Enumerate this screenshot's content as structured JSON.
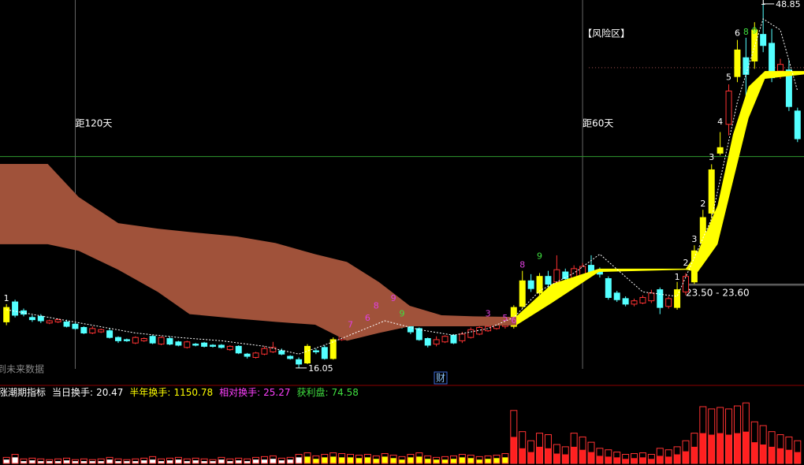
{
  "chart_data": [
    {
      "type": "candlestick",
      "xlim": [
        -0.75,
        92.75
      ],
      "ylim": [
        14.55,
        49.2
      ],
      "ohlc": [
        [
          20.2,
          21.8,
          19.9,
          21.5
        ],
        [
          22.0,
          22.2,
          20.6,
          20.8
        ],
        [
          21.2,
          21.4,
          20.7,
          20.9
        ],
        [
          20.6,
          20.8,
          20.2,
          20.4
        ],
        [
          20.7,
          20.9,
          20.1,
          20.3
        ],
        [
          20.1,
          20.4,
          20.0,
          20.3
        ],
        [
          20.2,
          20.5,
          20.1,
          20.4
        ],
        [
          20.2,
          20.4,
          19.7,
          19.8
        ],
        [
          20.0,
          20.1,
          19.5,
          19.6
        ],
        [
          19.7,
          19.8,
          19.1,
          19.2
        ],
        [
          19.2,
          19.8,
          19.1,
          19.6
        ],
        [
          19.3,
          19.6,
          19.2,
          19.5
        ],
        [
          19.4,
          19.6,
          18.7,
          18.8
        ],
        [
          18.8,
          18.9,
          18.3,
          18.5
        ],
        [
          18.6,
          18.7,
          18.4,
          18.5
        ],
        [
          18.3,
          18.9,
          18.2,
          18.8
        ],
        [
          18.5,
          18.8,
          18.4,
          18.7
        ],
        [
          18.9,
          19.0,
          18.2,
          18.3
        ],
        [
          18.2,
          18.9,
          18.1,
          18.8
        ],
        [
          18.7,
          18.9,
          18.1,
          18.2
        ],
        [
          18.4,
          18.5,
          18.0,
          18.1
        ],
        [
          17.9,
          18.5,
          17.8,
          18.4
        ],
        [
          18.2,
          18.3,
          18.0,
          18.1
        ],
        [
          18.3,
          18.4,
          17.9,
          18.0
        ],
        [
          18.1,
          18.2,
          17.9,
          18.0
        ],
        [
          18.1,
          18.2,
          17.8,
          17.9
        ],
        [
          17.7,
          18.1,
          17.6,
          18.0
        ],
        [
          18.0,
          18.1,
          17.3,
          17.4
        ],
        [
          17.3,
          17.4,
          16.9,
          17.1
        ],
        [
          17.0,
          17.5,
          16.9,
          17.4
        ],
        [
          17.3,
          18.0,
          17.2,
          17.8
        ],
        [
          17.5,
          18.4,
          17.4,
          17.9
        ],
        [
          17.6,
          17.8,
          17.2,
          17.3
        ],
        [
          17.1,
          17.2,
          16.8,
          16.9
        ],
        [
          16.8,
          17.0,
          16.05,
          16.4
        ],
        [
          16.5,
          18.2,
          16.4,
          18.0
        ],
        [
          17.6,
          17.8,
          17.3,
          17.5
        ],
        [
          17.9,
          18.1,
          16.8,
          16.9
        ],
        [
          16.9,
          18.8,
          16.8,
          18.6
        ],
        [
          18.6,
          19.2,
          18.5,
          19.0
        ],
        [
          18.9,
          19.4,
          18.8,
          19.3
        ],
        [
          19.2,
          19.8,
          19.1,
          19.6
        ],
        [
          19.5,
          20.2,
          19.4,
          20.0
        ],
        [
          20.3,
          20.6,
          19.7,
          19.8
        ],
        [
          19.7,
          20.6,
          19.6,
          20.4
        ],
        [
          20.1,
          20.8,
          20.0,
          20.5
        ],
        [
          20.4,
          20.5,
          19.6,
          19.8
        ],
        [
          19.8,
          19.9,
          19.1,
          19.3
        ],
        [
          19.6,
          19.7,
          18.5,
          18.6
        ],
        [
          18.7,
          18.8,
          17.9,
          18.1
        ],
        [
          18.2,
          18.9,
          18.0,
          18.6
        ],
        [
          18.4,
          19.0,
          18.3,
          18.9
        ],
        [
          19.0,
          19.1,
          18.2,
          18.3
        ],
        [
          18.5,
          19.3,
          18.3,
          19.1
        ],
        [
          18.8,
          19.7,
          18.7,
          19.5
        ],
        [
          19.1,
          19.8,
          19.0,
          19.7
        ],
        [
          19.4,
          19.9,
          19.3,
          19.8
        ],
        [
          19.6,
          20.0,
          19.5,
          19.9
        ],
        [
          19.8,
          20.1,
          19.6,
          20.0
        ],
        [
          19.8,
          21.7,
          19.6,
          21.5
        ],
        [
          21.6,
          24.8,
          21.4,
          23.9
        ],
        [
          23.9,
          24.5,
          22.9,
          23.2
        ],
        [
          22.8,
          24.6,
          22.6,
          24.3
        ],
        [
          24.3,
          24.8,
          23.3,
          23.6
        ],
        [
          23.8,
          26.2,
          23.6,
          24.9
        ],
        [
          24.7,
          25.0,
          23.9,
          24.1
        ],
        [
          24.0,
          25.3,
          23.8,
          25.0
        ],
        [
          24.4,
          25.5,
          24.2,
          25.2
        ],
        [
          25.3,
          26.2,
          24.3,
          24.6
        ],
        [
          24.9,
          25.1,
          24.2,
          24.5
        ],
        [
          24.1,
          24.3,
          22.2,
          22.4
        ],
        [
          22.8,
          23.0,
          22.0,
          22.2
        ],
        [
          22.3,
          22.5,
          21.6,
          21.8
        ],
        [
          21.8,
          22.3,
          21.6,
          22.1
        ],
        [
          21.9,
          22.6,
          21.8,
          22.4
        ],
        [
          22.1,
          23.1,
          21.9,
          22.8
        ],
        [
          23.1,
          23.3,
          20.9,
          21.5
        ],
        [
          21.6,
          22.5,
          21.4,
          22.3
        ],
        [
          21.5,
          23.8,
          21.3,
          23.1
        ],
        [
          22.9,
          24.6,
          22.6,
          24.3
        ],
        [
          23.8,
          27.1,
          23.6,
          26.6
        ],
        [
          27.3,
          30.3,
          27.0,
          29.6
        ],
        [
          30.0,
          34.4,
          29.5,
          33.9
        ],
        [
          35.4,
          37.3,
          35.2,
          35.9
        ],
        [
          38.0,
          41.6,
          37.0,
          41.0
        ],
        [
          42.3,
          45.6,
          41.8,
          44.7
        ],
        [
          44.0,
          45.8,
          40.5,
          42.5
        ],
        [
          43.7,
          47.2,
          43.0,
          46.5
        ],
        [
          46.1,
          48.85,
          44.5,
          45.1
        ],
        [
          45.3,
          46.6,
          41.8,
          42.2
        ],
        [
          42.8,
          43.9,
          42.1,
          43.4
        ],
        [
          42.9,
          43.8,
          39.2,
          39.6
        ],
        [
          39.2,
          39.5,
          36.4,
          36.7
        ]
      ],
      "colors": [
        "#ffff00",
        "#54ffff",
        "#54ffff",
        "#54ffff",
        "#54ffff",
        "#ff3232",
        "#ff3232",
        "#54ffff",
        "#54ffff",
        "#54ffff",
        "#ff3232",
        "#ff3232",
        "#54ffff",
        "#54ffff",
        "#54ffff",
        "#ff3232",
        "#ff3232",
        "#54ffff",
        "#ff3232",
        "#54ffff",
        "#54ffff",
        "#ff3232",
        "#54ffff",
        "#54ffff",
        "#54ffff",
        "#54ffff",
        "#ff3232",
        "#54ffff",
        "#54ffff",
        "#ff3232",
        "#ff3232",
        "#ff3232",
        "#54ffff",
        "#54ffff",
        "#54ffff",
        "#ffff00",
        "#54ffff",
        "#54ffff",
        "#ffff00",
        "#ff3232",
        "#ff3232",
        "#ff3232",
        "#ff3232",
        "#54ffff",
        "#ff3232",
        "#ff3232",
        "#54ffff",
        "#54ffff",
        "#54ffff",
        "#54ffff",
        "#ff3232",
        "#ff3232",
        "#54ffff",
        "#ff3232",
        "#ff3232",
        "#ff3232",
        "#ff3232",
        "#ff3232",
        "#ff3232",
        "#ffff00",
        "#ffff00",
        "#54ffff",
        "#ffff00",
        "#54ffff",
        "#ff3232",
        "#54ffff",
        "#ff3232",
        "#ff3232",
        "#54ffff",
        "#54ffff",
        "#54ffff",
        "#54ffff",
        "#54ffff",
        "#ff3232",
        "#ff3232",
        "#ff3232",
        "#54ffff",
        "#ff3232",
        "#ffff00",
        "#ff3232",
        "#ffff00",
        "#ffff00",
        "#ffff00",
        "#ffff00",
        "#ff3232",
        "#ffff00",
        "#54ffff",
        "#ffff00",
        "#54ffff",
        "#54ffff",
        "#ff3232",
        "#54ffff",
        "#54ffff"
      ],
      "band": {
        "color": "#a0523a",
        "x": [
          -0.75,
          4.8,
          8.4,
          13.0,
          17.6,
          21.3,
          26.8,
          31.3,
          35.9,
          39.6,
          43.3,
          46.9,
          50.6,
          54.3,
          59.3
        ],
        "upper": [
          34.43,
          34.43,
          31.45,
          29.1,
          28.6,
          28.3,
          27.9,
          27.3,
          26.3,
          25.6,
          23.8,
          21.65,
          20.8,
          20.7,
          20.65
        ],
        "lower": [
          27.2,
          27.2,
          26.6,
          24.9,
          22.9,
          20.9,
          20.5,
          20.2,
          19.95,
          18.5,
          19.2,
          19.8,
          19.8,
          19.8,
          19.9
        ]
      },
      "ribbon": {
        "color": "#ffff00",
        "x": [
          59.3,
          63.4,
          68.9,
          79.0,
          80.4,
          82.7,
          84.5,
          86.3,
          88.2,
          92.75
        ],
        "upper": [
          20.7,
          23.6,
          25.0,
          25.0,
          26.5,
          30.7,
          37.1,
          41.4,
          42.8,
          42.8
        ],
        "lower": [
          19.9,
          21.9,
          24.7,
          24.9,
          24.7,
          27.2,
          32.9,
          38.55,
          42.1,
          42.5
        ]
      },
      "ma": {
        "color": "#ffffff",
        "x": [
          0,
          5,
          10,
          15,
          20,
          25,
          30,
          34,
          38,
          44,
          48,
          52,
          56,
          59,
          62,
          66,
          69,
          74,
          78,
          82,
          85,
          88,
          90,
          92
        ],
        "values": [
          21.3,
          20.6,
          19.9,
          19.2,
          18.8,
          18.5,
          18.0,
          17.3,
          18.4,
          20.3,
          19.5,
          19.0,
          19.6,
          20.6,
          23.0,
          24.6,
          26.3,
          22.9,
          22.5,
          29.5,
          40.0,
          47.5,
          46.5,
          41.0
        ]
      },
      "hlines": [
        {
          "value": 35.1,
          "color": "#2e9a2e"
        }
      ],
      "risk_zone": {
        "label": "【风险区】",
        "value": 43.1
      },
      "support": {
        "label": "23.50 - 23.60",
        "values": [
          23.5,
          23.6
        ]
      },
      "markers": [
        {
          "label": "距120天",
          "index": 8
        },
        {
          "label": "距60天",
          "index": 67
        }
      ],
      "counts": [
        {
          "label": "1",
          "color": "#ffffff",
          "index": 0,
          "value": 22.3
        },
        {
          "label": "7",
          "color": "#e040e0",
          "index": 40,
          "value": 19.9
        },
        {
          "label": "6",
          "color": "#e040e0",
          "index": 42,
          "value": 20.5
        },
        {
          "label": "8",
          "color": "#e040e0",
          "index": 43,
          "value": 21.6
        },
        {
          "label": "9",
          "color": "#e040e0",
          "index": 45,
          "value": 22.3
        },
        {
          "label": "9",
          "color": "#40e040",
          "index": 46,
          "value": 20.9
        },
        {
          "label": "3",
          "color": "#e040e0",
          "index": 56,
          "value": 20.9
        },
        {
          "label": "5",
          "color": "#e040e0",
          "index": 58,
          "value": 20.5
        },
        {
          "label": "6",
          "color": "#e040e0",
          "index": 59,
          "value": 20.3
        },
        {
          "label": "8",
          "color": "#e040e0",
          "index": 60,
          "value": 25.3
        },
        {
          "label": "9",
          "color": "#40e040",
          "index": 62,
          "value": 26.1
        },
        {
          "label": "1",
          "color": "#ffffff",
          "index": 78,
          "value": 24.2
        },
        {
          "label": "2",
          "color": "#ffffff",
          "index": 79,
          "value": 25.5
        },
        {
          "label": "3",
          "color": "#ffffff",
          "index": 80,
          "value": 27.6
        },
        {
          "label": "2",
          "color": "#ffffff",
          "index": 81,
          "value": 30.8
        },
        {
          "label": "3",
          "color": "#ffffff",
          "index": 82,
          "value": 35.0
        },
        {
          "label": "4",
          "color": "#ffffff",
          "index": 83,
          "value": 38.2
        },
        {
          "label": "5",
          "color": "#ffffff",
          "index": 84,
          "value": 42.2
        },
        {
          "label": "6",
          "color": "#ffffff",
          "index": 85,
          "value": 46.2
        },
        {
          "label": "8",
          "color": "#40e040",
          "index": 86,
          "value": 46.3
        },
        {
          "label": "9",
          "color": "#40e040",
          "index": 87,
          "value": 46.4
        },
        {
          "label": "1",
          "color": "#ffffff",
          "index": 88,
          "value": 49.0
        }
      ],
      "note": "到未来数据",
      "badge": "财"
    },
    {
      "type": "bar",
      "title": "涨潮期指标",
      "stats": [
        {
          "label": "当日换手:",
          "value": 20.47,
          "color": "#ffffff"
        },
        {
          "label": "半年换手:",
          "value": 1150.78,
          "color": "#ffff00"
        },
        {
          "label": "相对换手:",
          "value": 25.27,
          "color": "#ff40ff"
        },
        {
          "label": "获利盘:",
          "value": 74.58,
          "color": "#40e040"
        }
      ],
      "xlim": [
        -0.75,
        92.75
      ],
      "ylim": [
        0,
        100
      ],
      "color": "#ff3232",
      "values": [
        8,
        12,
        6,
        7,
        6,
        5,
        6,
        7,
        5,
        6,
        5,
        6,
        8,
        6,
        5,
        6,
        7,
        9,
        6,
        7,
        8,
        6,
        7,
        6,
        5,
        8,
        6,
        7,
        6,
        8,
        9,
        10,
        7,
        8,
        12,
        14,
        10,
        12,
        14,
        13,
        12,
        11,
        12,
        10,
        13,
        11,
        9,
        12,
        14,
        10,
        8,
        9,
        10,
        12,
        11,
        9,
        10,
        11,
        13,
        70,
        42,
        30,
        40,
        38,
        25,
        22,
        40,
        35,
        28,
        20,
        18,
        15,
        12,
        13,
        14,
        12,
        20,
        18,
        22,
        30,
        40,
        75,
        72,
        74,
        72,
        76,
        80,
        55,
        50,
        42,
        38,
        35,
        30
      ],
      "fill_values": [
        5,
        8,
        3,
        4,
        3,
        3,
        3,
        4,
        3,
        3,
        3,
        3,
        5,
        3,
        3,
        3,
        4,
        5,
        3,
        4,
        5,
        3,
        4,
        3,
        3,
        5,
        3,
        4,
        3,
        5,
        5,
        6,
        4,
        5,
        8,
        9,
        6,
        8,
        9,
        8,
        8,
        7,
        8,
        6,
        9,
        7,
        5,
        8,
        9,
        6,
        5,
        5,
        6,
        8,
        7,
        5,
        6,
        7,
        8,
        35,
        20,
        15,
        22,
        20,
        13,
        12,
        22,
        18,
        15,
        10,
        9,
        8,
        6,
        7,
        8,
        6,
        10,
        9,
        12,
        16,
        22,
        40,
        38,
        40,
        38,
        40,
        42,
        28,
        25,
        22,
        20,
        18,
        15
      ],
      "fill_colors": [
        "#ffffff",
        "#ffffff",
        "#ffffff",
        "#ffffff",
        "#ffffff",
        "#ffffff",
        "#ffffff",
        "#ffffff",
        "#ffffff",
        "#ffffff",
        "#ffffff",
        "#ffffff",
        "#ffffff",
        "#ffffff",
        "#ffffff",
        "#ffffff",
        "#ffffff",
        "#ffffff",
        "#ffffff",
        "#ffffff",
        "#ffffff",
        "#ffffff",
        "#ffffff",
        "#ffffff",
        "#ffffff",
        "#ffffff",
        "#ffffff",
        "#ffffff",
        "#ffffff",
        "#ffffff",
        "#ffffff",
        "#ffffff",
        "#ffffff",
        "#ffffff",
        "#ffffff",
        "#ffff00",
        "#ffff00",
        "#ffff00",
        "#ffff00",
        "#ffff00",
        "#ffff00",
        "#ffff00",
        "#ffff00",
        "#ffff00",
        "#ffff00",
        "#ffff00",
        "#ffff00",
        "#ffff00",
        "#ffff00",
        "#ffff00",
        "#ffff00",
        "#ffff00",
        "#ffff00",
        "#ffff00",
        "#ffff00",
        "#ffff00",
        "#ffff00",
        "#ffff00",
        "#ffff00",
        "#ff2020",
        "#ff2020",
        "#ff2020",
        "#ff2020",
        "#ff2020",
        "#ff2020",
        "#ff2020",
        "#ff2020",
        "#ff2020",
        "#ff2020",
        "#ff2020",
        "#ff2020",
        "#ff2020",
        "#ff2020",
        "#ff2020",
        "#ff2020",
        "#ff2020",
        "#ff2020",
        "#ff2020",
        "#ff2020",
        "#ff2020",
        "#ff2020",
        "#ff2020",
        "#ff2020",
        "#ff2020",
        "#ff2020",
        "#ff2020",
        "#ff2020",
        "#ff2020",
        "#ff2020",
        "#ff2020",
        "#ff2020",
        "#ff2020",
        "#ff2020"
      ]
    }
  ]
}
